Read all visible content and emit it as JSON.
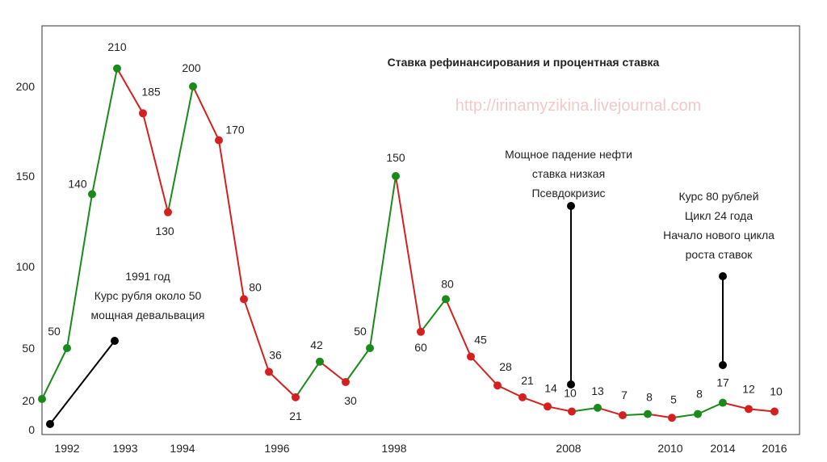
{
  "chart_data": {
    "type": "line",
    "title": "Ставка рефинансирования и процентная ставка",
    "watermark": "http://irinamyzikina.livejournal.com",
    "y_ticks": [
      "0",
      "20",
      "50",
      "100",
      "150",
      "200"
    ],
    "x_ticks": [
      "1992",
      "1993",
      "1994",
      "1996",
      "1998",
      "2008",
      "2010",
      "2014",
      "2016"
    ],
    "colors": {
      "up": "#1a8a1a",
      "down": "#d42020",
      "marker": "#000000",
      "frame": "#333333"
    },
    "series": [
      {
        "values": [
          20,
          50,
          140,
          210,
          185,
          130,
          200,
          170,
          80,
          36,
          21,
          42,
          30,
          50,
          150,
          60,
          80,
          45,
          28,
          21,
          14,
          10,
          13,
          7,
          8,
          5,
          8,
          17,
          12,
          10
        ],
        "labels": [
          "20",
          "50",
          "140",
          "210",
          "185",
          "130",
          "200",
          "170",
          "80",
          "36",
          "21",
          "42",
          "30",
          "50",
          "150",
          "60",
          "80",
          "45",
          "28",
          "21",
          "14",
          "10",
          "13",
          "7",
          "8",
          "5",
          "8",
          "17",
          "12",
          "10"
        ],
        "direction": [
          "up",
          "up",
          "up",
          "up",
          "down",
          "down",
          "up",
          "down",
          "down",
          "down",
          "down",
          "up",
          "down",
          "up",
          "up",
          "down",
          "up",
          "down",
          "down",
          "down",
          "down",
          "down",
          "up",
          "down",
          "up",
          "down",
          "up",
          "up",
          "down",
          "down"
        ]
      }
    ],
    "annotations": [
      {
        "lines": [
          "1991 год",
          "Курс рубля около 50",
          "мощная девальвация"
        ]
      },
      {
        "lines": [
          "Мощное падение нефти",
          "ставка низкая",
          "Псевдокризис"
        ]
      },
      {
        "lines": [
          "Курс 80 рублей",
          "Цикл 24 года",
          "Начало нового цикла",
          "роста ставок"
        ]
      }
    ]
  }
}
